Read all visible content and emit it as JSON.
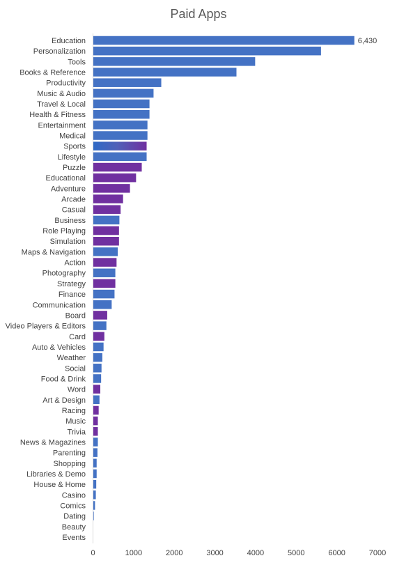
{
  "chart_data": {
    "type": "bar",
    "orientation": "horizontal",
    "title": "Paid Apps",
    "xlabel": "",
    "ylabel": "",
    "xlim": [
      0,
      7000
    ],
    "xticks": [
      0,
      1000,
      2000,
      3000,
      4000,
      5000,
      6000,
      7000
    ],
    "grid": false,
    "legend": "none",
    "colors": {
      "apps": "#4472c4",
      "games": "#7030a0"
    },
    "categories": [
      "Education",
      "Personalization",
      "Tools",
      "Books & Reference",
      "Productivity",
      "Music & Audio",
      "Travel & Local",
      "Health & Fitness",
      "Entertainment",
      "Medical",
      "Sports",
      "Lifestyle",
      "Puzzle",
      "Educational",
      "Adventure",
      "Arcade",
      "Casual",
      "Business",
      "Role Playing",
      "Simulation",
      "Maps & Navigation",
      "Action",
      "Photography",
      "Strategy",
      "Finance",
      "Communication",
      "Board",
      "Video Players & Editors",
      "Card",
      "Auto & Vehicles",
      "Weather",
      "Social",
      "Food & Drink",
      "Word",
      "Art & Design",
      "Racing",
      "Music",
      "Trivia",
      "News & Magazines",
      "Parenting",
      "Shopping",
      "Libraries & Demo",
      "House & Home",
      "Casino",
      "Comics",
      "Dating",
      "Beauty",
      "Events"
    ],
    "values": [
      6430,
      5610,
      3990,
      3530,
      1680,
      1490,
      1390,
      1390,
      1340,
      1340,
      1320,
      1320,
      1200,
      1060,
      910,
      740,
      680,
      650,
      640,
      640,
      610,
      580,
      550,
      550,
      530,
      460,
      350,
      330,
      280,
      260,
      230,
      210,
      200,
      180,
      160,
      140,
      120,
      120,
      120,
      110,
      90,
      90,
      80,
      70,
      50,
      20,
      0,
      0
    ],
    "bar_groups": [
      "apps",
      "apps",
      "apps",
      "apps",
      "apps",
      "apps",
      "apps",
      "apps",
      "apps",
      "apps",
      "mixed",
      "apps",
      "games",
      "games",
      "games",
      "games",
      "games",
      "apps",
      "games",
      "games",
      "apps",
      "games",
      "apps",
      "games",
      "apps",
      "apps",
      "games",
      "apps",
      "games",
      "apps",
      "apps",
      "apps",
      "apps",
      "games",
      "apps",
      "games",
      "games",
      "games",
      "apps",
      "apps",
      "apps",
      "apps",
      "apps",
      "apps",
      "apps",
      "apps",
      "apps",
      "apps"
    ],
    "data_labels": [
      {
        "category": "Education",
        "text": "6,430"
      }
    ]
  }
}
